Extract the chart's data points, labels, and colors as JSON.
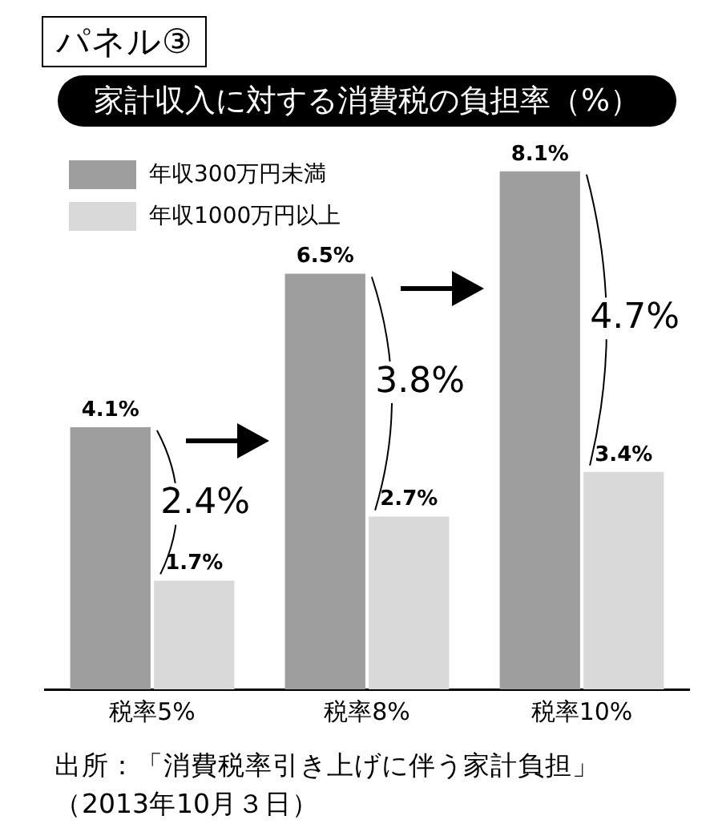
{
  "chart_data": {
    "type": "bar",
    "title": "家計収入に対する消費税の負担率（%）",
    "categories": [
      "税率5%",
      "税率8%",
      "税率10%"
    ],
    "series": [
      {
        "name": "年収300万円未満",
        "color": "#9e9e9e",
        "values": [
          4.1,
          6.5,
          8.1
        ],
        "value_labels": [
          "4.1%",
          "6.5%",
          "8.1%"
        ]
      },
      {
        "name": "年収1000万円以上",
        "color": "#d9d9d9",
        "values": [
          1.7,
          2.7,
          3.4
        ],
        "value_labels": [
          "1.7%",
          "2.7%",
          "3.4%"
        ]
      }
    ],
    "annotations": [
      "パネル③",
      {
        "text": "2.4%",
        "x": "税率5%",
        "y": 2.9
      },
      {
        "text": "3.8%",
        "x": "税率8%",
        "y": 4.8
      },
      {
        "text": "4.7%",
        "x": "税率10%",
        "y": 5.8
      },
      "出所：「消費税率引き上げに伴う家計負担」（2013年10月３日）"
    ],
    "legend": "top left",
    "grid": false
  }
}
